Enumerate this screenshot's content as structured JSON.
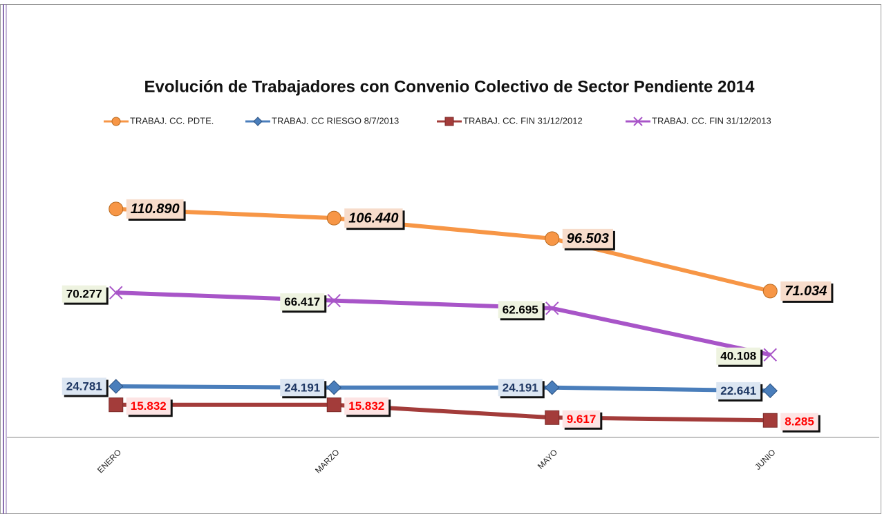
{
  "chart_data": {
    "type": "line",
    "title": "Evolución de Trabajadores con Convenio Colectivo de Sector Pendiente 2014",
    "categories": [
      "ENERO",
      "MARZO",
      "MAYO",
      "JUNIO"
    ],
    "series": [
      {
        "name": "TRABAJ. CC. PDTE.",
        "color": "#f79646",
        "marker": "circle",
        "values": [
          110890,
          106440,
          96503,
          71034
        ],
        "value_labels": [
          "110.890",
          "106.440",
          "96.503",
          "71.034"
        ]
      },
      {
        "name": "TRABAJ. CC RIESGO 8/7/2013",
        "color": "#4a7ebb",
        "marker": "diamond",
        "values": [
          24781,
          24191,
          24191,
          22641
        ],
        "value_labels": [
          "24.781",
          "24.191",
          "24.191",
          "22.641"
        ]
      },
      {
        "name": "TRABAJ. CC. FIN 31/12/2012",
        "color": "#a33c3a",
        "marker": "square",
        "values": [
          15832,
          15832,
          9617,
          8285
        ],
        "value_labels": [
          "15.832",
          "15.832",
          "9.617",
          "8.285"
        ]
      },
      {
        "name": "TRABAJ. CC. FIN 31/12/2013",
        "color": "#a855c8",
        "marker": "x",
        "values": [
          70277,
          66417,
          62695,
          40108
        ],
        "value_labels": [
          "70.277",
          "66.417",
          "62.695",
          "40.108"
        ]
      }
    ]
  }
}
